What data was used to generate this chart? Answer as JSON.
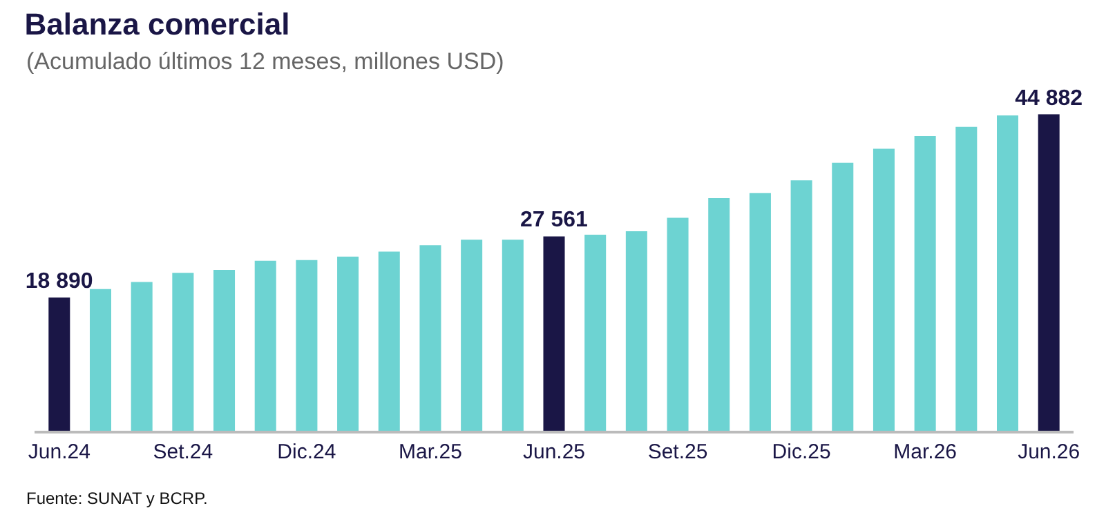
{
  "chart_data": {
    "type": "bar",
    "title": "Balanza comercial",
    "subtitle": "(Acumulado últimos 12 meses, millones USD)",
    "categories": [
      "Jun.24",
      null,
      null,
      "Set.24",
      null,
      null,
      "Dic.24",
      null,
      null,
      "Mar.25",
      null,
      null,
      "Jun.25",
      null,
      null,
      "Set.25",
      null,
      null,
      "Dic.25",
      null,
      null,
      "Mar.26",
      null,
      null,
      "Jun.26"
    ],
    "values": [
      18890,
      20100,
      21100,
      22400,
      22800,
      24100,
      24200,
      24700,
      25400,
      26300,
      27100,
      27100,
      27561,
      27800,
      28300,
      30200,
      33000,
      33700,
      35500,
      38000,
      40000,
      41800,
      43100,
      44700,
      44882
    ],
    "colors": [
      "#1a1646",
      "#6dd3d2",
      "#6dd3d2",
      "#6dd3d2",
      "#6dd3d2",
      "#6dd3d2",
      "#6dd3d2",
      "#6dd3d2",
      "#6dd3d2",
      "#6dd3d2",
      "#6dd3d2",
      "#6dd3d2",
      "#1a1646",
      "#6dd3d2",
      "#6dd3d2",
      "#6dd3d2",
      "#6dd3d2",
      "#6dd3d2",
      "#6dd3d2",
      "#6dd3d2",
      "#6dd3d2",
      "#6dd3d2",
      "#6dd3d2",
      "#6dd3d2",
      "#1a1646"
    ],
    "value_labels": [
      "18 890",
      null,
      null,
      null,
      null,
      null,
      null,
      null,
      null,
      null,
      null,
      null,
      "27 561",
      null,
      null,
      null,
      null,
      null,
      null,
      null,
      null,
      null,
      null,
      null,
      "44 882"
    ],
    "annotations": [
      "Fuente: SUNAT y BCRP."
    ]
  }
}
